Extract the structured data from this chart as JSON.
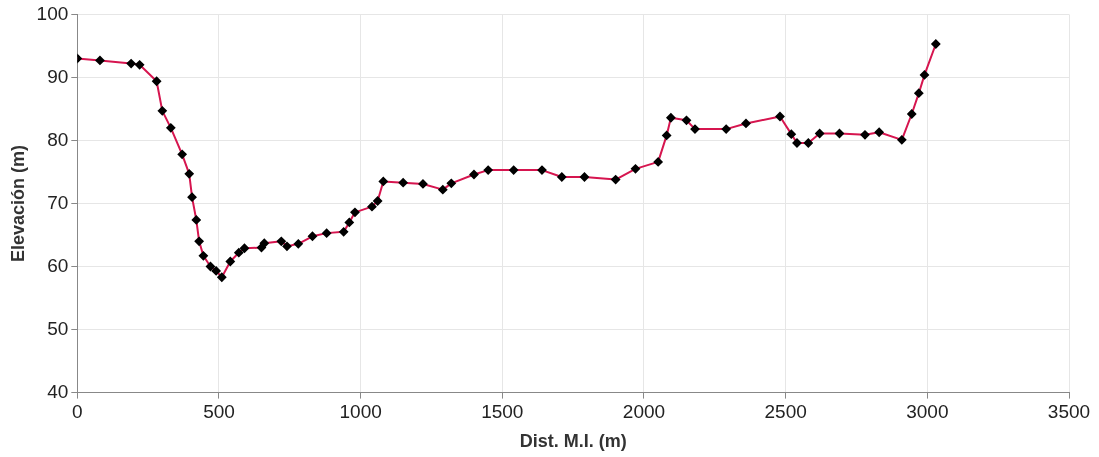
{
  "chart_data": {
    "type": "line",
    "xlabel": "Dist. M.I. (m)",
    "ylabel": "Elevación (m)",
    "x": [
      0,
      80,
      190,
      220,
      280,
      300,
      330,
      370,
      395,
      405,
      420,
      430,
      445,
      470,
      490,
      510,
      540,
      570,
      590,
      650,
      660,
      720,
      740,
      780,
      830,
      880,
      940,
      960,
      980,
      1040,
      1060,
      1080,
      1150,
      1220,
      1290,
      1320,
      1400,
      1450,
      1540,
      1640,
      1710,
      1790,
      1900,
      1970,
      2050,
      2080,
      2095,
      2150,
      2180,
      2290,
      2360,
      2480,
      2520,
      2540,
      2580,
      2620,
      2690,
      2780,
      2830,
      2910,
      2945,
      2970,
      2990,
      3030
    ],
    "series": [
      {
        "color": "#d6154f",
        "values": [
          93,
          92.7,
          92.2,
          92,
          89.4,
          84.7,
          82,
          77.8,
          74.7,
          71,
          67.4,
          64,
          61.7,
          60,
          59.3,
          58.3,
          60.8,
          62.2,
          62.9,
          63,
          63.7,
          64,
          63.2,
          63.6,
          64.8,
          65.3,
          65.5,
          67,
          68.6,
          69.5,
          70.4,
          73.5,
          73.3,
          73.1,
          72.2,
          73.2,
          74.6,
          75.3,
          75.3,
          75.3,
          74.2,
          74.2,
          73.8,
          75.5,
          76.6,
          80.8,
          83.6,
          83.2,
          81.8,
          81.8,
          82.7,
          83.8,
          81,
          79.6,
          79.6,
          81.1,
          81.1,
          80.9,
          81.3,
          80.1,
          84.2,
          87.5,
          90.4,
          95.3
        ]
      }
    ],
    "xlim": [
      0,
      3500
    ],
    "xticks": [
      0,
      500,
      1000,
      1500,
      2000,
      2500,
      3000,
      3500
    ],
    "ylim": [
      40,
      100
    ],
    "yticks": [
      40,
      50,
      60,
      70,
      80,
      90,
      100
    ],
    "grid": true,
    "marker": "diamond",
    "line_style": "solid",
    "legend": false
  }
}
